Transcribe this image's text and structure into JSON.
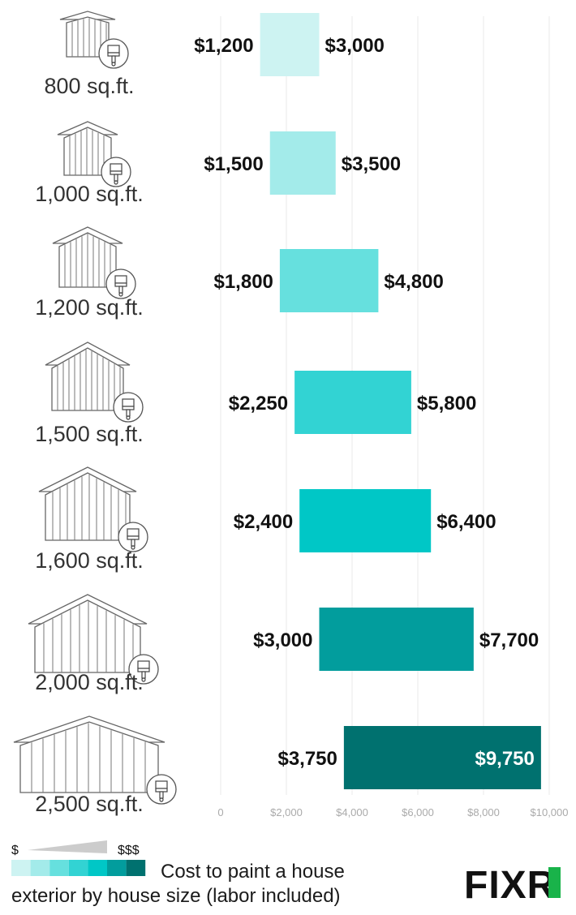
{
  "chart_data": {
    "type": "range-bar",
    "title": "Cost to paint a house exterior by house size (labor included)",
    "title_lines": [
      "Cost to paint a house",
      "exterior by house size (labor included)"
    ],
    "categories": [
      "800 sq.ft.",
      "1,000 sq.ft.",
      "1,200 sq.ft.",
      "1,500 sq.ft.",
      "1,600 sq.ft.",
      "2,000 sq.ft.",
      "2,500 sq.ft."
    ],
    "low": [
      1200,
      1500,
      1800,
      2250,
      2400,
      3000,
      3750
    ],
    "high": [
      3000,
      3500,
      4800,
      5800,
      6400,
      7700,
      9750
    ],
    "low_labels": [
      "$1,200",
      "$1,500",
      "$1,800",
      "$2,250",
      "$2,400",
      "$3,000",
      "$3,750"
    ],
    "high_labels": [
      "$3,000",
      "$3,500",
      "$4,800",
      "$5,800",
      "$6,400",
      "$7,700",
      "$9,750"
    ],
    "bar_colors": [
      "#cdf3f2",
      "#a3ebea",
      "#66e0de",
      "#32d3d3",
      "#00c7c6",
      "#029d9d",
      "#00716f"
    ],
    "xlim": [
      0,
      10000
    ],
    "x_ticks": [
      0,
      2000,
      4000,
      6000,
      8000,
      10000
    ],
    "x_tick_labels": [
      "0",
      "$2,000",
      "$4,000",
      "$6,000",
      "$8,000",
      "$10,000"
    ],
    "grid": true,
    "legend": {
      "low_label": "$",
      "high_label": "$$$",
      "swatches": [
        "#cdf3f2",
        "#a3ebea",
        "#66e0de",
        "#32d3d3",
        "#00c7c6",
        "#029d9d",
        "#00716f"
      ],
      "wedge_color": "#cccccc"
    },
    "icon_names": [
      "house-icon",
      "paint-brush-icon"
    ]
  },
  "brand": {
    "logo_text": "FIXR",
    "logo_color": "#111111",
    "logo_accent": "#19b34a"
  }
}
